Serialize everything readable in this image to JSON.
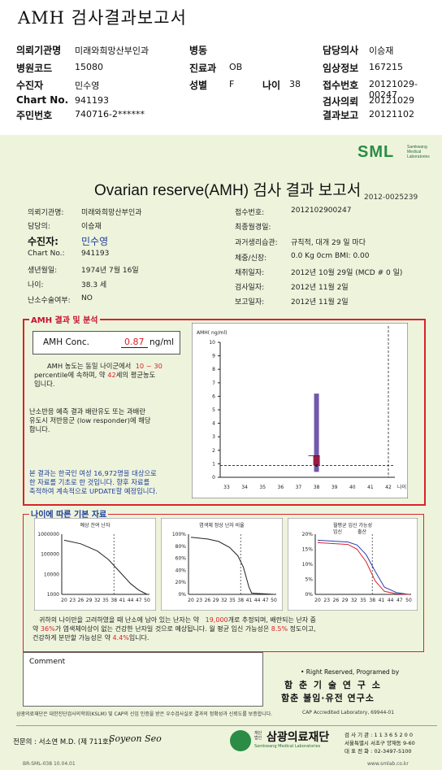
{
  "header": {
    "title": "AMH 검사결과보고서",
    "fields": [
      {
        "label": "의뢰기관명",
        "value": "미래와희망산부인과"
      },
      {
        "label": "병원코드",
        "value": "15080"
      },
      {
        "label": "수진자",
        "value": "민수영"
      },
      {
        "label": "Chart No.",
        "value": "941193"
      },
      {
        "label": "주민번호",
        "value": "740716-2******"
      },
      {
        "label": "병동",
        "value": ""
      },
      {
        "label": "진료과",
        "value": "OB"
      },
      {
        "label": "성별",
        "value": "F"
      },
      {
        "label": "나이",
        "value": "38"
      },
      {
        "label": "담당의사",
        "value": "이승재"
      },
      {
        "label": "임상정보",
        "value": "167215"
      },
      {
        "label": "접수번호",
        "value": "20121029-00247"
      },
      {
        "label": "검사의뢰",
        "value": "20121029"
      },
      {
        "label": "결과보고",
        "value": "20121102"
      }
    ]
  },
  "logo": {
    "text": "SML",
    "sub1": "Samkwang",
    "sub2": "Medical",
    "sub3": "Laboratories"
  },
  "report": {
    "title": "Ovarian reserve(AMH) 검사 결과 보고서",
    "number": "2012-0025239",
    "left": [
      {
        "label": "의뢰기관명:",
        "value": "미래와희망산부인과"
      },
      {
        "label": "담당의:",
        "value": "이승재"
      },
      {
        "label": "수진자:",
        "value": "민수영"
      },
      {
        "label": "Chart No.:",
        "value": "941193"
      },
      {
        "label": "생년월일:",
        "value": "1974년 7월 16일"
      },
      {
        "label": "나이:",
        "value": "38.3 세"
      },
      {
        "label": "난소수술여부:",
        "value": "NO"
      }
    ],
    "right": [
      {
        "label": "접수번호:",
        "value": "2012102900247"
      },
      {
        "label": "최종월경일:",
        "value": ""
      },
      {
        "label": "과거생리습관:",
        "value": "규칙적,  대개   29 일 마다"
      },
      {
        "label": "체중/신장:",
        "value": "0.0 Kg      0cm    BMI:   0.00"
      },
      {
        "label": "채취일자:",
        "value": "2012년 10월 29일 (MCD #  0 일)"
      },
      {
        "label": "검사일자:",
        "value": "2012년 11월 2일"
      },
      {
        "label": "보고일자:",
        "value": "2012년 11월 2일"
      }
    ]
  },
  "amh": {
    "section_title": "AMH 결과 및 분석",
    "conc_label": "AMH Conc.",
    "conc_value": "0.87",
    "conc_unit": "ng/ml",
    "p1a": "AMH 농도는 동일 나이군에서",
    "p1b": "10 ~ 30",
    "p1c": "percentile에 속하며, 약",
    "p1d": "42",
    "p1e": "세의 평균농도",
    "p1f": "입니다.",
    "p2": [
      "난소반응 예측 결과 배란유도 또는 과배란",
      "유도시 저반응군 (low responder)에 해당",
      "합니다."
    ],
    "p3": [
      "본 결과는 한국인 여성 16,972명을 대상으로",
      "한 자료를 기초로 한 것입니다. 향후 자료를",
      "축적하여 계속적으로 UPDATE할 예정입니다."
    ]
  },
  "chart_data": [
    {
      "type": "box",
      "title": "",
      "ylabel": "AMH( ng/ml)",
      "xlabel": "나이",
      "x_categories": [
        33,
        34,
        35,
        36,
        37,
        38,
        39,
        40,
        41,
        42
      ],
      "ylim": [
        0,
        10
      ],
      "y_ticks": [
        0,
        1,
        2,
        3,
        4,
        5,
        6,
        7,
        8,
        9,
        10
      ],
      "box": {
        "x": 38,
        "low": 0.4,
        "q1": 0.9,
        "q3": 1.6,
        "high": 6.2
      },
      "patient": {
        "x": 38,
        "value": 0.87
      }
    },
    {
      "type": "line",
      "title": "예상 잔여 난자",
      "y_ticks": [
        "1000000",
        "100000",
        "10000",
        "1000"
      ],
      "x_categories": [
        20,
        23,
        26,
        29,
        32,
        35,
        38,
        41,
        44,
        47,
        50
      ],
      "scale": "log"
    },
    {
      "type": "line",
      "title": "염색체 정상 난자 비율",
      "y_ticks": [
        "100%",
        "80%",
        "60%",
        "40%",
        "20%",
        "0%"
      ],
      "x_categories": [
        20,
        23,
        26,
        29,
        32,
        35,
        38,
        41,
        44,
        47,
        50
      ]
    },
    {
      "type": "line",
      "title": "월평균 임신 가능성",
      "series": [
        {
          "name": "임신",
          "color": "#2a3fb0"
        },
        {
          "name": "출산",
          "color": "#d8232a"
        }
      ],
      "y_ticks": [
        "20%",
        "15%",
        "10%",
        "5%",
        "0%"
      ],
      "x_categories": [
        20,
        23,
        26,
        29,
        32,
        35,
        38,
        41,
        44,
        47,
        50
      ]
    }
  ],
  "age_section": {
    "title": "나이에 따른 기본 자료",
    "l1a": "귀하의 나이만을 고려하였을 때 난소에 남아 있는 난자는 약",
    "l1b": "19,000",
    "l1c": "개로 추정되며, 배란되는 난자 중",
    "l2a": "약",
    "l2b": "36%",
    "l2c": "가 염색체이상이 없는 건강한 난자일 것으로 예상됩니다. 월 평균 임신 가능성은",
    "l2d": "8.5%",
    "l2e": "정도이고,",
    "l3a": "건강하게 분만할 가능성은 약",
    "l3b": "4.4%",
    "l3c": "입니다."
  },
  "comment": {
    "label": "Comment"
  },
  "programmer": {
    "line1": "• Right Reserved, Programed by",
    "line2": "함 춘 기 술 연 구 소",
    "line3": "함춘 불임·유전 연구소"
  },
  "footer": {
    "cert": "삼광의료재단은 대한진단검사의학회(KSLM) 및 CAP의 신임 인증을 받은 우수검사실로 결과의 정확성과 신뢰도를 보증합니다.",
    "cap": "CAP  Accredited  Laboratory,  69944-01",
    "doctor": "전문의 : 서소연 M.D. (제 711호)",
    "sign": "Soyeon Seo",
    "org_top": "재단법인",
    "org": "삼광의료재단",
    "org_en": "Samkwang Medical Laboratories",
    "tel": "검 사 기 관 : 1 1 3 6 5 2 0 0",
    "addr": "서울특별시 서초구 양재동 9-60",
    "phone": "대 표 전 화 : 02-3497-5100",
    "code": "BR-SML-038 10.04.01",
    "web": "www.smlab.co.kr"
  }
}
